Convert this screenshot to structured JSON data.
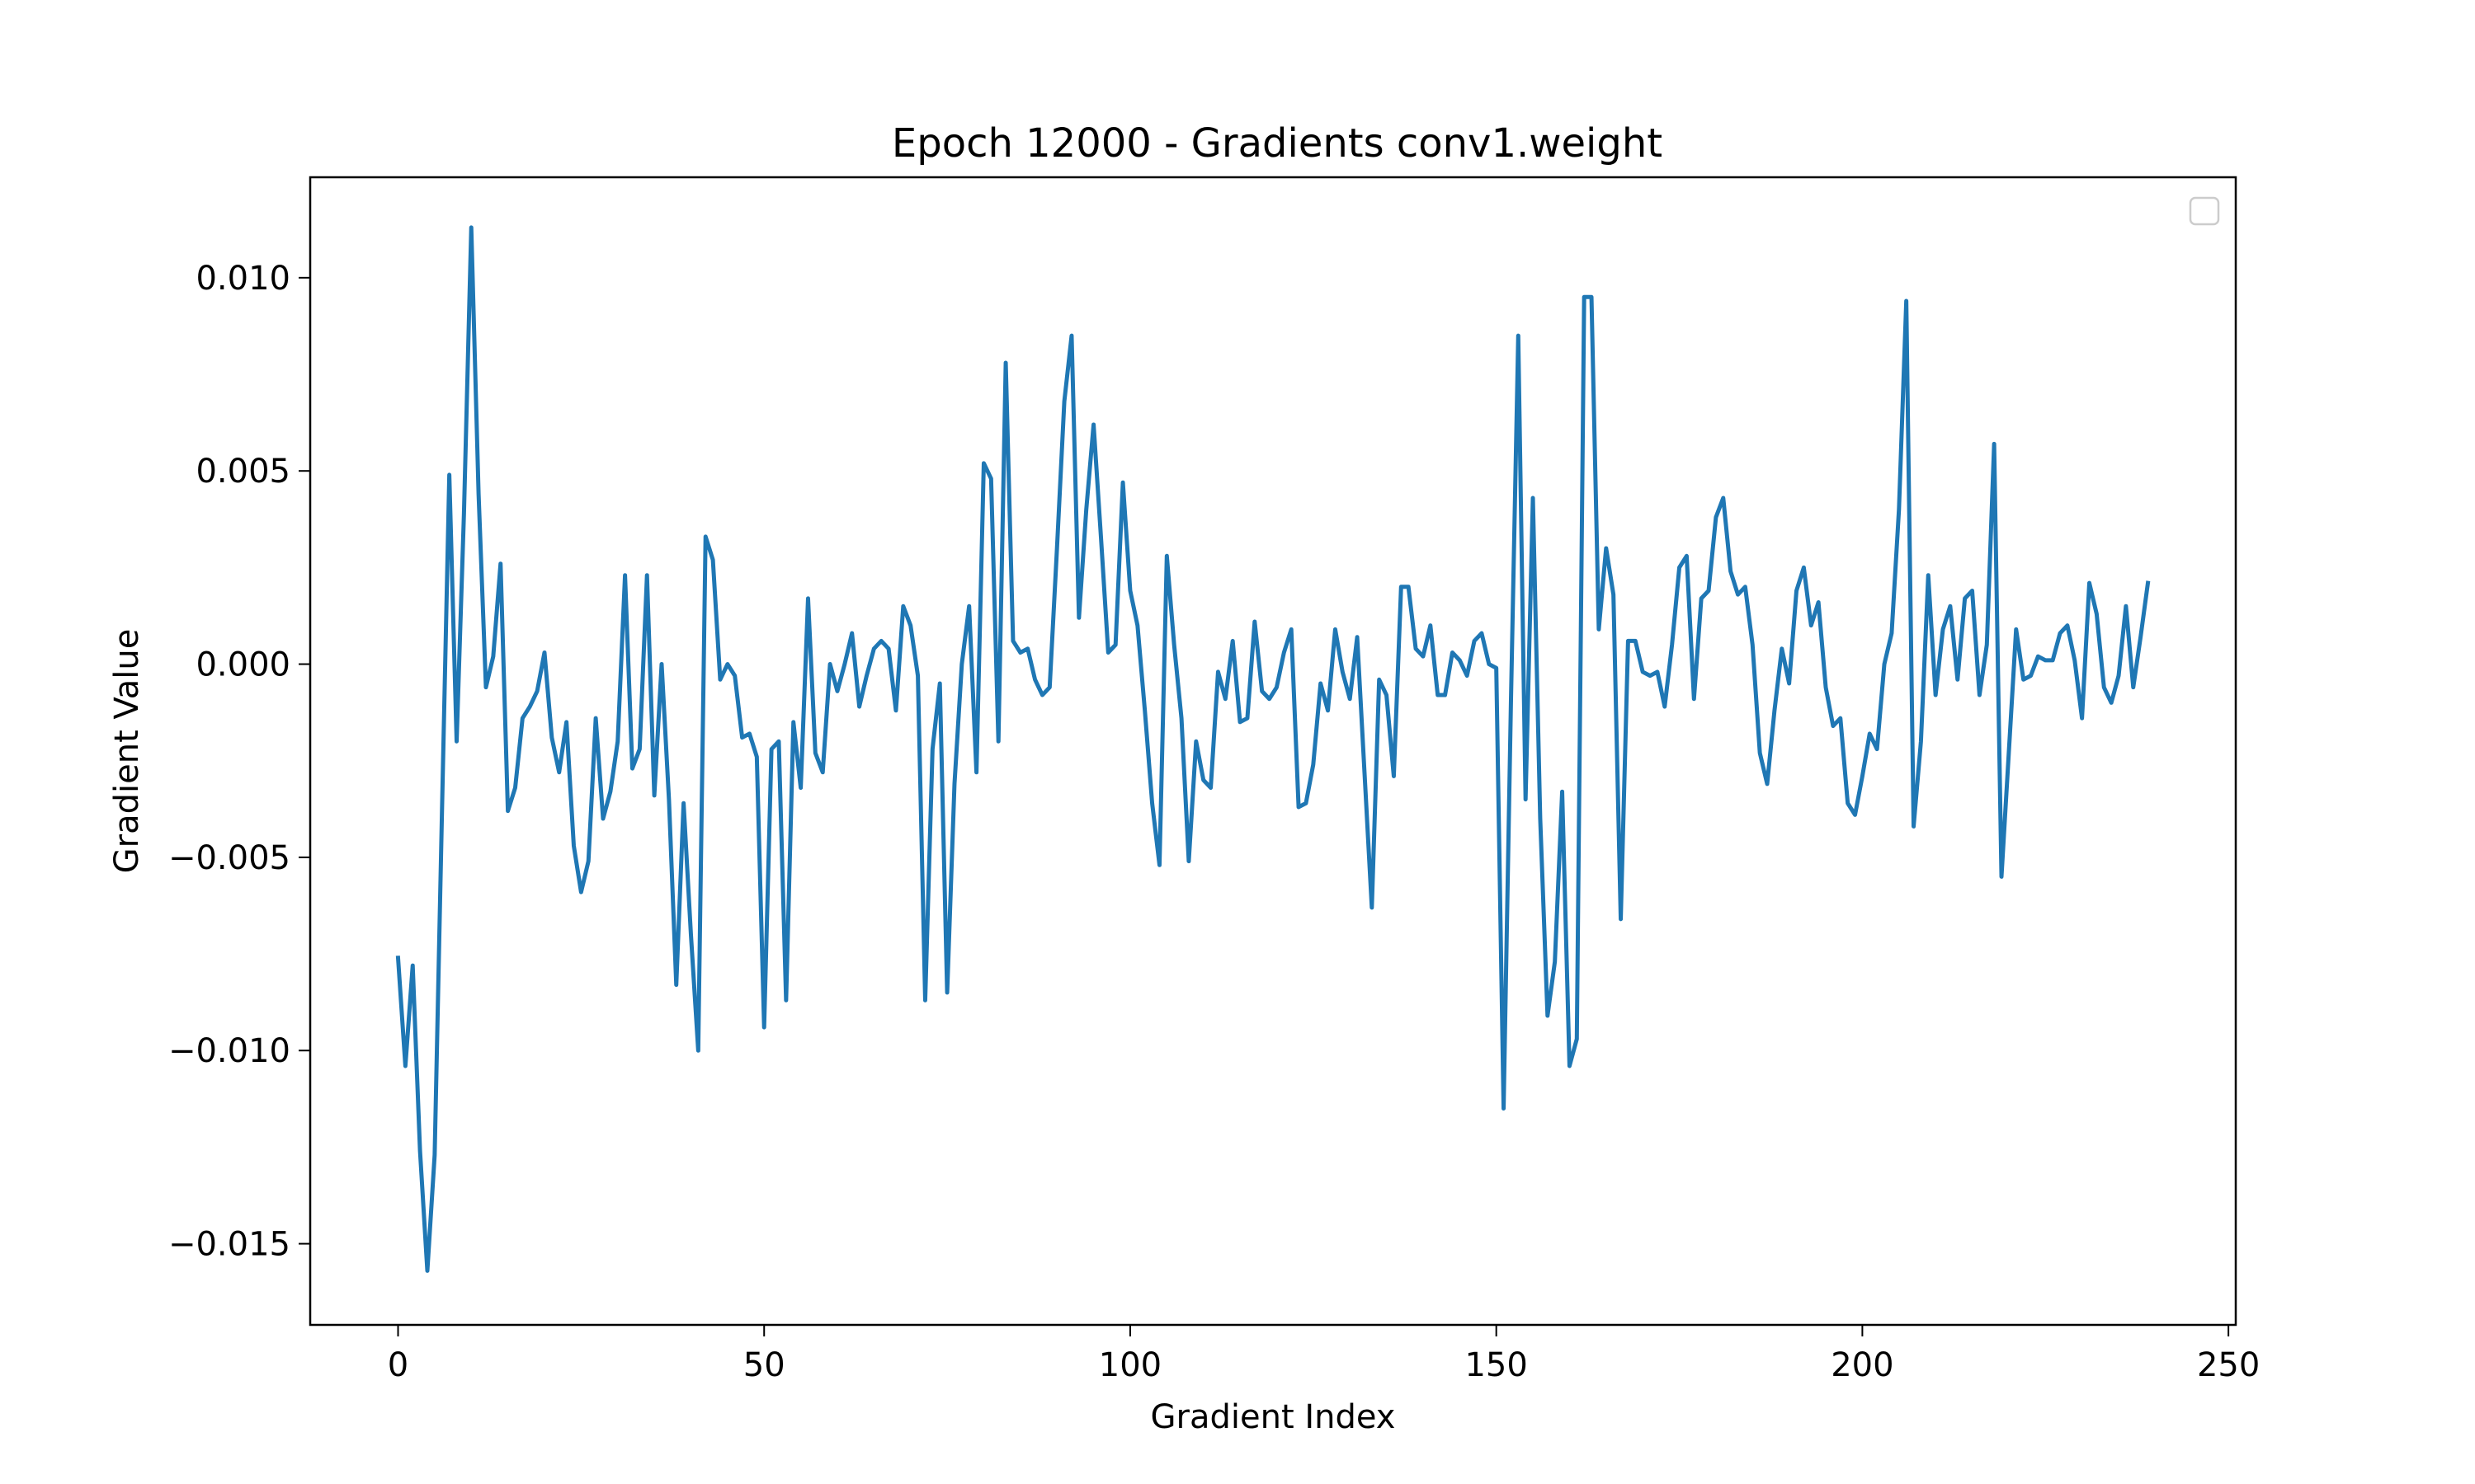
{
  "chart_data": {
    "type": "line",
    "title": "Epoch 12000 - Gradients conv1.weight",
    "xlabel": "Gradient Index",
    "ylabel": "Gradient Value",
    "xlim": [
      -12,
      251
    ],
    "ylim": [
      -0.0171,
      0.0126
    ],
    "xticks": [
      0,
      50,
      100,
      150,
      200,
      250
    ],
    "xtick_labels": [
      "0",
      "50",
      "100",
      "150",
      "200",
      "250"
    ],
    "yticks": [
      -0.015,
      -0.01,
      -0.005,
      0.0,
      0.005,
      0.01
    ],
    "ytick_labels": [
      "−0.015",
      "−0.010",
      "−0.005",
      "0.000",
      "0.005",
      "0.010"
    ],
    "grid": false,
    "legend": {
      "placement": "upper right",
      "entries": []
    },
    "colors": {
      "line": "#1f77b4",
      "axes": "#000000",
      "legend_border": "#cccccc"
    },
    "series": [
      {
        "values": [
          -0.0076,
          -0.0104,
          -0.0078,
          -0.0126,
          -0.0157,
          -0.0127,
          -0.0038,
          0.0049,
          -0.002,
          0.0039,
          0.0113,
          0.0044,
          -0.0006,
          0.0002,
          0.0026,
          -0.0038,
          -0.0032,
          -0.0014,
          -0.0011,
          -0.0007,
          0.0003,
          -0.0019,
          -0.0028,
          -0.0015,
          -0.0047,
          -0.0059,
          -0.0051,
          -0.0014,
          -0.004,
          -0.0033,
          -0.002,
          0.0023,
          -0.0027,
          -0.0022,
          0.0023,
          -0.0034,
          0.0,
          -0.0035,
          -0.0083,
          -0.0036,
          -0.007,
          -0.01,
          0.0033,
          0.0027,
          -0.0004,
          0.0,
          -0.0003,
          -0.0019,
          -0.0018,
          -0.0024,
          -0.0094,
          -0.0022,
          -0.002,
          -0.0087,
          -0.0015,
          -0.0032,
          0.0017,
          -0.0023,
          -0.0028,
          0.0,
          -0.0007,
          0.0,
          0.0008,
          -0.0011,
          -0.0003,
          0.0004,
          0.0006,
          0.0004,
          -0.0012,
          0.0015,
          0.001,
          -0.0003,
          -0.0087,
          -0.0022,
          -0.0005,
          -0.0085,
          -0.0031,
          0.0,
          0.0015,
          -0.0028,
          0.0052,
          0.0048,
          -0.002,
          0.0078,
          0.0006,
          0.0003,
          0.0004,
          -0.0004,
          -0.0008,
          -0.0006,
          0.003,
          0.0068,
          0.0085,
          0.0012,
          0.004,
          0.0062,
          0.0033,
          0.0003,
          0.0005,
          0.0047,
          0.0019,
          0.001,
          -0.0012,
          -0.0036,
          -0.0052,
          0.0028,
          0.0005,
          -0.0014,
          -0.0051,
          -0.002,
          -0.003,
          -0.0032,
          -0.0002,
          -0.0009,
          0.0006,
          -0.0015,
          -0.0014,
          0.0011,
          -0.0007,
          -0.0009,
          -0.0006,
          0.0003,
          0.0009,
          -0.0037,
          -0.0036,
          -0.0026,
          -0.0005,
          -0.0012,
          0.0009,
          -0.0002,
          -0.0009,
          0.0007,
          -0.0028,
          -0.0063,
          -0.0004,
          -0.0008,
          -0.0029,
          0.002,
          0.002,
          0.0004,
          0.0002,
          0.001,
          -0.0008,
          -0.0008,
          0.0003,
          0.0001,
          -0.0003,
          0.0006,
          0.0008,
          0.0,
          -0.0001,
          -0.0115,
          -0.001,
          0.0085,
          -0.0035,
          0.0043,
          -0.004,
          -0.0091,
          -0.0077,
          -0.0033,
          -0.0104,
          -0.0097,
          0.0095,
          0.0095,
          0.0009,
          0.003,
          0.0018,
          -0.0066,
          0.0006,
          0.0006,
          -0.0002,
          -0.0003,
          -0.0002,
          -0.0011,
          0.0005,
          0.0025,
          0.0028,
          -0.0009,
          0.0017,
          0.0019,
          0.0038,
          0.0043,
          0.0024,
          0.0018,
          0.002,
          0.0005,
          -0.0023,
          -0.0031,
          -0.0012,
          0.0004,
          -0.0005,
          0.0019,
          0.0025,
          0.001,
          0.0016,
          -0.0006,
          -0.0016,
          -0.0014,
          -0.0036,
          -0.0039,
          -0.0029,
          -0.0018,
          -0.0022,
          0.0,
          0.0008,
          0.004,
          0.0094,
          -0.0042,
          -0.002,
          0.0023,
          -0.0008,
          0.0009,
          0.0015,
          -0.0004,
          0.0017,
          0.0019,
          -0.0008,
          0.0005,
          0.0057,
          -0.0055,
          -0.0023,
          0.0009,
          -0.0004,
          -0.0003,
          0.0002,
          0.0001,
          0.0001,
          0.0008,
          0.001,
          0.0001,
          -0.0014,
          0.0021,
          0.0013,
          -0.0006,
          -0.001,
          -0.0003,
          0.0015,
          -0.0006,
          0.0007,
          0.0021
        ]
      }
    ]
  }
}
